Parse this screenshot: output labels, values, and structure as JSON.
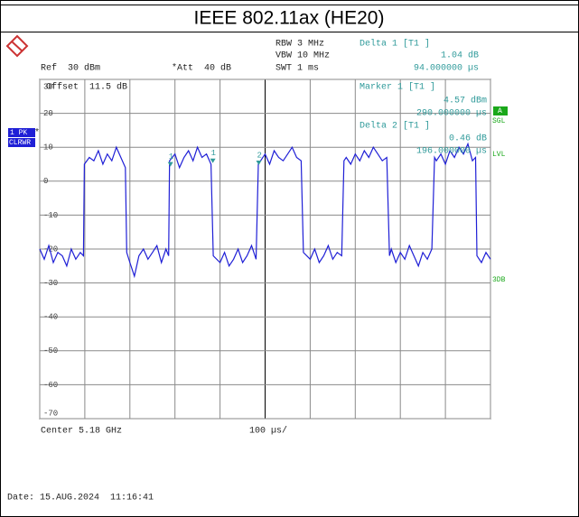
{
  "title": "IEEE 802.11ax (HE20)",
  "header": {
    "ref": "Ref  30 dBm",
    "att": "*Att  40 dB",
    "rbw": "RBW 3 MHz",
    "vbw": "VBW 10 MHz",
    "swt": "SWT 1 ms",
    "delta1": "Delta 1 [T1 ]",
    "delta1_level": "1.04 dB",
    "delta1_time": "94.000000 µs"
  },
  "readout": {
    "offset": "Offset  11.5 dB",
    "marker1": "Marker 1 [T1 ]",
    "marker1_level": "4.57 dBm",
    "marker1_time": "290.000000 µs",
    "delta2": "Delta 2 [T1 ]",
    "delta2_level": "0.46 dB",
    "delta2_time": "196.000000 µs"
  },
  "side": {
    "trace": "1 PK",
    "mode": "CLRWR",
    "star": "*",
    "a": "A",
    "sgl": "SGL",
    "lvl": "LVL",
    "db3": "3DB"
  },
  "footer": {
    "center": "Center 5.18 GHz",
    "span": "100 µs/",
    "date": "Date: 15.AUG.2024  11:16:41"
  },
  "chart_data": {
    "type": "line",
    "color": "#1f1fd6",
    "xlim": [
      0,
      1000
    ],
    "xticks": [
      0,
      100,
      200,
      300,
      400,
      500,
      600,
      700,
      800,
      900,
      1000
    ],
    "ylim": [
      -70,
      30
    ],
    "yticks": [
      30,
      20,
      10,
      0,
      -10,
      -20,
      -30,
      -40,
      -50,
      -60,
      -70
    ],
    "grid": true,
    "x": [
      0,
      10,
      20,
      30,
      40,
      50,
      60,
      70,
      80,
      90,
      97,
      99,
      110,
      120,
      130,
      140,
      150,
      160,
      170,
      180,
      190,
      193,
      200,
      210,
      220,
      230,
      240,
      250,
      260,
      270,
      280,
      286,
      288,
      300,
      310,
      320,
      330,
      340,
      350,
      360,
      370,
      380,
      385,
      400,
      410,
      420,
      430,
      440,
      450,
      460,
      470,
      480,
      485,
      490,
      500,
      510,
      520,
      530,
      540,
      550,
      560,
      570,
      580,
      585,
      600,
      610,
      620,
      630,
      640,
      650,
      660,
      670,
      675,
      680,
      690,
      700,
      710,
      720,
      730,
      740,
      750,
      760,
      770,
      776,
      780,
      790,
      800,
      810,
      820,
      830,
      840,
      850,
      860,
      870,
      876,
      880,
      890,
      900,
      910,
      920,
      930,
      940,
      950,
      960,
      967,
      970,
      980,
      990,
      1000
    ],
    "values": [
      -20,
      -23,
      -19,
      -24,
      -21,
      -22,
      -25,
      -20,
      -23,
      -21,
      -22,
      5,
      7,
      6,
      9,
      5,
      8,
      6,
      10,
      7,
      4,
      -21,
      -24,
      -28,
      -22,
      -20,
      -23,
      -21,
      -19,
      -24,
      -20,
      -22,
      6,
      8,
      4,
      7,
      9,
      6,
      10,
      7,
      8,
      5,
      -22,
      -24,
      -21,
      -25,
      -23,
      -20,
      -24,
      -22,
      -19,
      -23,
      5,
      6,
      8,
      5,
      9,
      7,
      6,
      8,
      10,
      7,
      6,
      -21,
      -23,
      -20,
      -24,
      -22,
      -19,
      -23,
      -21,
      -22,
      6,
      7,
      5,
      8,
      6,
      9,
      7,
      10,
      8,
      6,
      7,
      -22,
      -20,
      -24,
      -21,
      -23,
      -19,
      -22,
      -25,
      -21,
      -23,
      -20,
      7,
      6,
      8,
      5,
      9,
      7,
      10,
      8,
      11,
      6,
      7,
      -22,
      -24,
      -21,
      -23
    ],
    "markers": [
      {
        "label": "1",
        "x": 290,
        "y": 4.57
      },
      {
        "label": "1",
        "x": 384,
        "y": 5.6
      },
      {
        "label": "2",
        "x": 486,
        "y": 5.0
      }
    ]
  }
}
